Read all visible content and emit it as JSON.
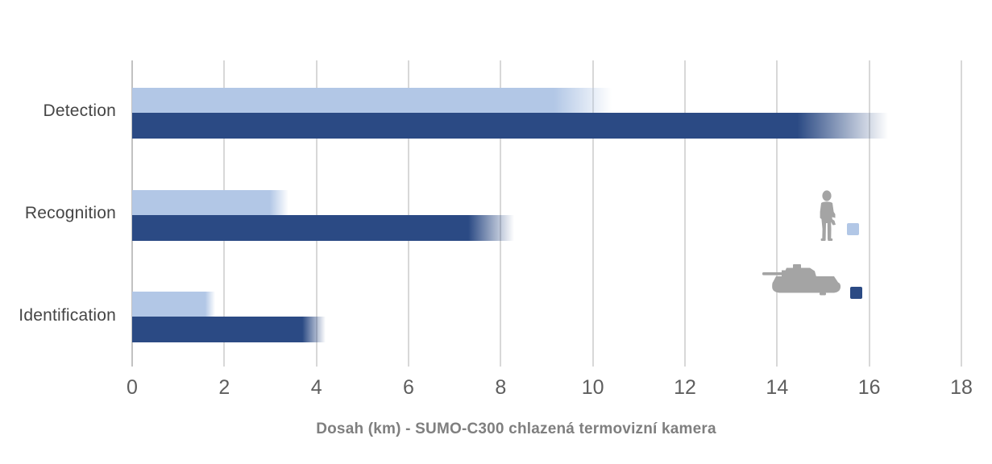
{
  "chart_data": {
    "type": "bar",
    "orientation": "horizontal",
    "title": "",
    "xlabel": "Dosah (km) - SUMO-C300 chlazená termovizní kamera",
    "ylabel": "",
    "categories": [
      "Detection",
      "Recognition",
      "Identification"
    ],
    "series": [
      {
        "key": "person",
        "name": "human target (person icon)",
        "color": "#B2C7E6",
        "values": [
          10.4,
          3.4,
          1.8
        ]
      },
      {
        "key": "tank",
        "name": "vehicle target (tank icon)",
        "color": "#2B4A84",
        "values": [
          16.4,
          8.3,
          4.2
        ]
      }
    ],
    "xlim": [
      0,
      18
    ],
    "xticks": [
      0,
      2,
      4,
      6,
      8,
      10,
      12,
      14,
      16,
      18
    ],
    "grid": true,
    "legend_position": "right-middle",
    "bar_style": "bars fade from solid color to white at the right tip"
  },
  "legend": {
    "person_icon": "person-silhouette-icon",
    "tank_icon": "tank-silhouette-icon",
    "icon_color": "#a4a4a4"
  },
  "colors": {
    "bar_light": "#B2C7E6",
    "bar_dark": "#2B4A84",
    "gridline": "#d8d8d8",
    "axis_line": "#c2c2c2",
    "category_text": "#454545",
    "tick_text": "#5e5e5e",
    "title_text": "#7f7f7f",
    "background": "#ffffff"
  }
}
